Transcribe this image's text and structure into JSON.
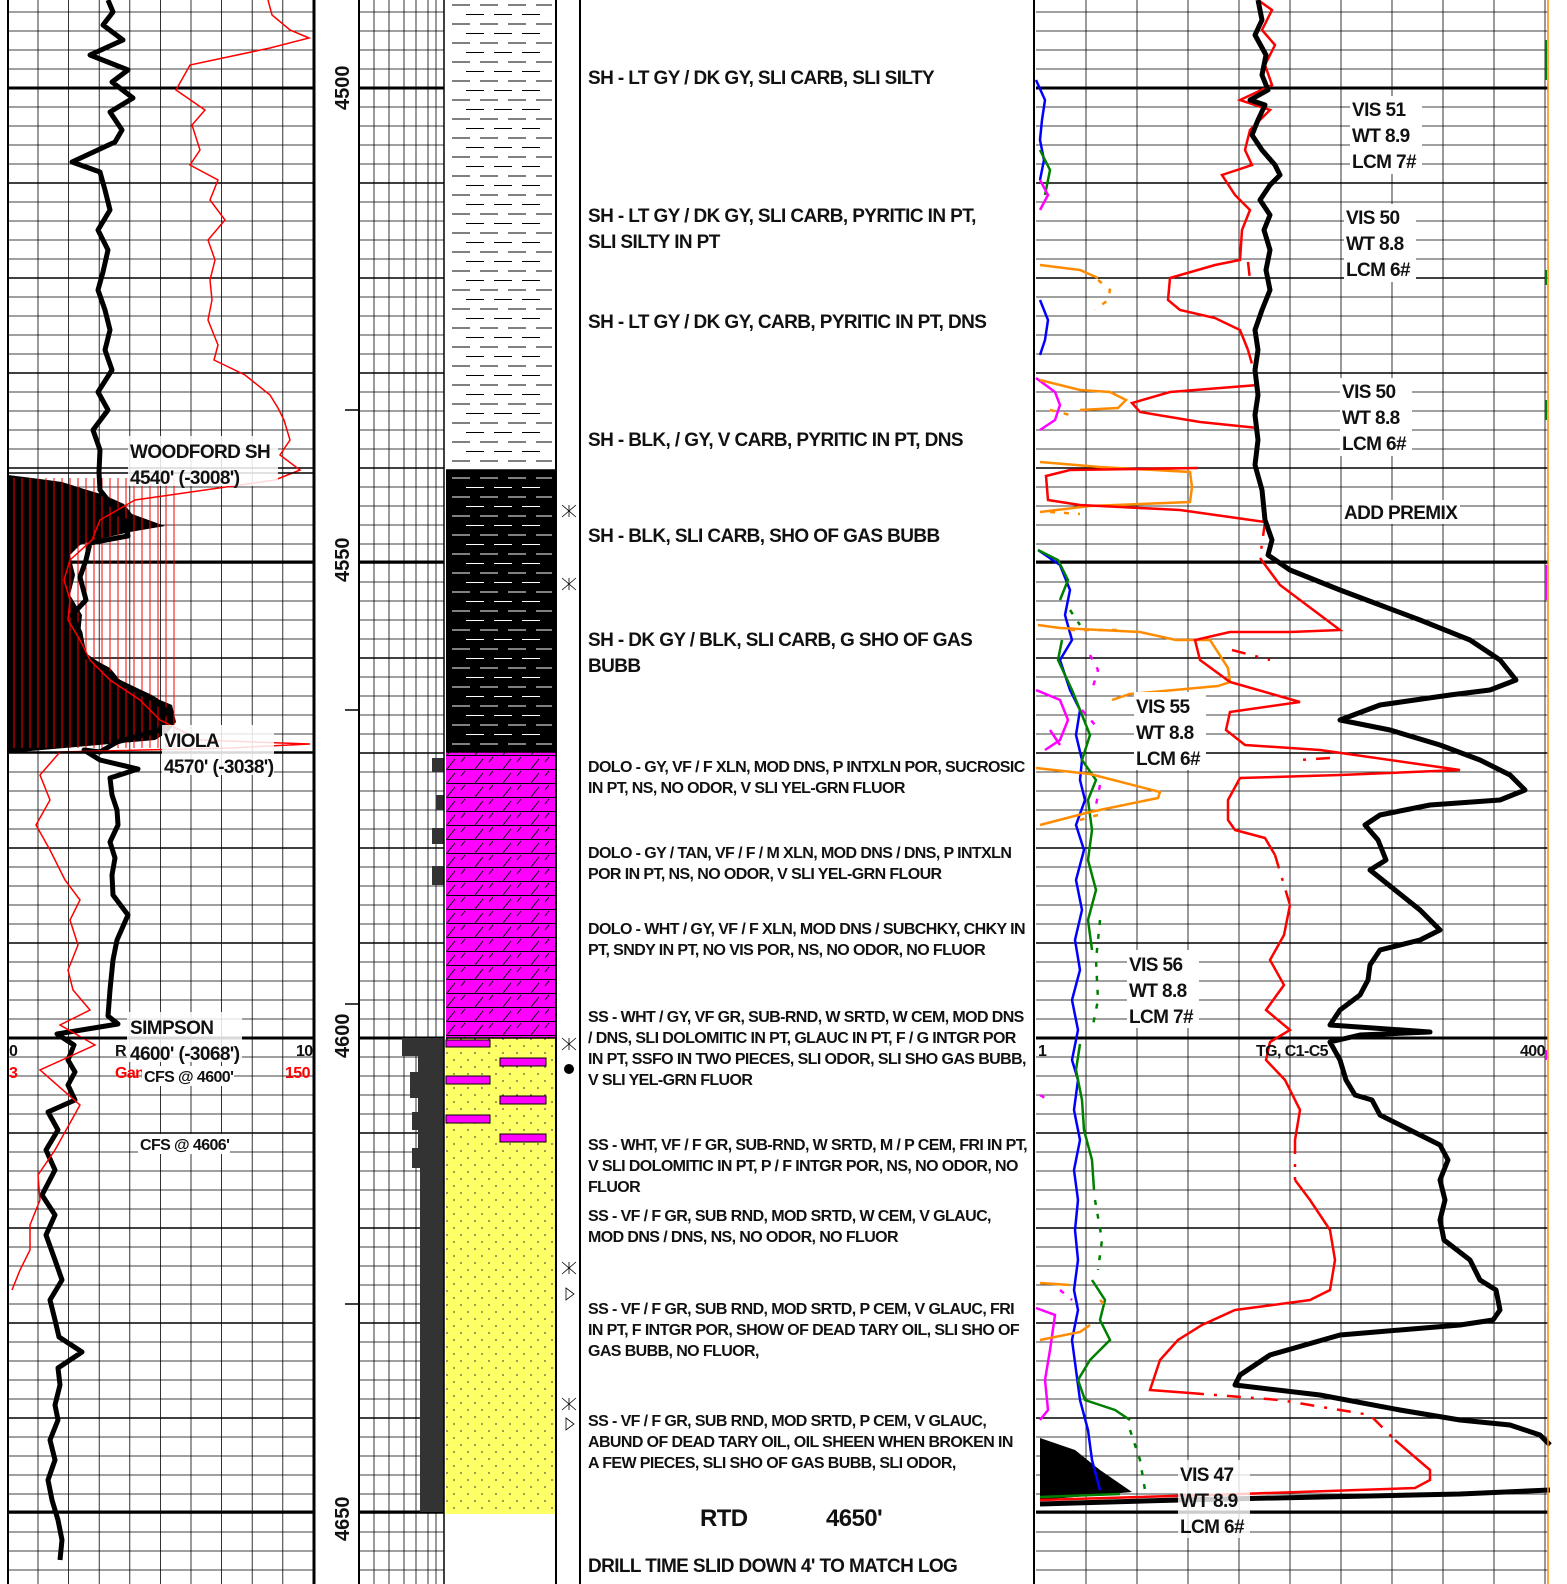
{
  "colors": {
    "gamma_line": "#000000",
    "resistivity_line": "#ff0000",
    "shale_fill": "#000000",
    "dolomite_fill": "#ff00ff",
    "sandstone_fill": "#ffff66",
    "c1": "#ff0000",
    "c2": "#ff8c00",
    "c3": "#008000",
    "c4": "#0000ff",
    "c5": "#ff00ff",
    "total_gas": "#000000"
  },
  "depth_track": {
    "labels": [
      "4500",
      "4550",
      "4600",
      "4650"
    ]
  },
  "formation_tops": [
    {
      "name": "WOODFORD SH",
      "depth": "4540' (-3008')"
    },
    {
      "name": "VIOLA",
      "depth": "4570' (-3038')"
    },
    {
      "name": "SIMPSON",
      "depth": "4600' (-3068')"
    }
  ],
  "left_scales": {
    "black_min": "0",
    "black_mid": "R",
    "black_max": "10",
    "red_min": "3",
    "red_mid": "Gan",
    "red_max": "150"
  },
  "core_notes": [
    "CFS @ 4600'",
    "CFS @ 4606'"
  ],
  "lithology_descriptions": [
    {
      "lines": [
        "SH - LT GY / DK GY, SLI CARB, SLI SILTY"
      ]
    },
    {
      "lines": [
        "SH - LT GY / DK GY, SLI CARB, PYRITIC IN PT,",
        "SLI SILTY IN PT"
      ]
    },
    {
      "lines": [
        "SH - LT GY / DK GY, CARB, PYRITIC IN PT, DNS"
      ]
    },
    {
      "lines": [
        "SH - BLK, / GY, V CARB, PYRITIC IN PT, DNS"
      ]
    },
    {
      "lines": [
        "SH - BLK, SLI CARB, SHO OF GAS BUBB"
      ]
    },
    {
      "lines": [
        "SH - DK GY / BLK, SLI CARB, G SHO OF GAS",
        "BUBB"
      ]
    },
    {
      "lines": [
        "DOLO - GY, VF / F XLN, MOD DNS, P INTXLN POR, SUCROSIC",
        "IN PT, NS, NO ODOR, V SLI YEL-GRN FLUOR"
      ]
    },
    {
      "lines": [
        "DOLO - GY / TAN, VF / F / M XLN, MOD DNS / DNS, P INTXLN",
        "POR IN PT, NS, NO ODOR, V SLI YEL-GRN FLOUR"
      ]
    },
    {
      "lines": [
        "DOLO - WHT / GY, VF / F XLN, MOD DNS / SUBCHKY, CHKY IN",
        "PT, SNDY IN PT, NO VIS POR, NS, NO ODOR, NO FLUOR"
      ]
    },
    {
      "lines": [
        "SS - WHT / GY, VF GR, SUB-RND, W SRTD, W CEM, MOD DNS",
        "/ DNS, SLI DOLOMITIC IN PT,  GLAUC IN PT, F / G INTGR POR",
        "IN PT, SSFO IN TWO PIECES, SLI ODOR, SLI SHO GAS BUBB,",
        "V SLI YEL-GRN FLUOR"
      ]
    },
    {
      "lines": [
        "SS - WHT, VF / F GR, SUB-RND, W SRTD, M / P CEM, FRI IN PT,",
        "V SLI DOLOMITIC IN PT, P / F INTGR POR, NS, NO ODOR, NO",
        "FLUOR"
      ]
    },
    {
      "lines": [
        "SS - VF / F GR, SUB RND, MOD SRTD, W CEM, V GLAUC,",
        "MOD DNS / DNS, NS, NO ODOR, NO FLUOR"
      ]
    },
    {
      "lines": [
        "SS - VF / F GR, SUB RND, MOD SRTD, P CEM, V GLAUC, FRI",
        "IN PT, F INTGR POR, SHOW OF DEAD TARY OIL, SLI SHO OF",
        "GAS BUBB, NO FLUOR,"
      ]
    },
    {
      "lines": [
        "SS - VF / F GR, SUB RND, MOD SRTD, P CEM, V GLAUC,",
        "ABUND OF DEAD TARY OIL, OIL SHEEN WHEN BROKEN IN",
        "A FEW PIECES, SLI SHO OF GAS BUBB, SLI ODOR,"
      ]
    }
  ],
  "footer": {
    "rtd_label": "RTD",
    "rtd_value": "4650'",
    "note": "DRILL TIME SLID DOWN 4' TO MATCH LOG"
  },
  "mud_reports": [
    {
      "vis": "VIS 51",
      "wt": "WT 8.9",
      "lcm": "LCM 7#"
    },
    {
      "vis": "VIS 50",
      "wt": "WT 8.8",
      "lcm": "LCM 6#"
    },
    {
      "vis": "VIS 50",
      "wt": "WT 8.8",
      "lcm": "LCM 6#"
    },
    {
      "vis": "VIS 55",
      "wt": "WT 8.8",
      "lcm": "LCM 6#"
    },
    {
      "vis": "VIS 56",
      "wt": "WT 8.8",
      "lcm": "LCM 7#"
    },
    {
      "vis": "VIS 47",
      "wt": "WT 8.9",
      "lcm": "LCM 6#"
    }
  ],
  "mud_note": "ADD PREMIX",
  "gas_scale": {
    "min": "1",
    "label": "TG, C1-C5",
    "max": "400"
  }
}
